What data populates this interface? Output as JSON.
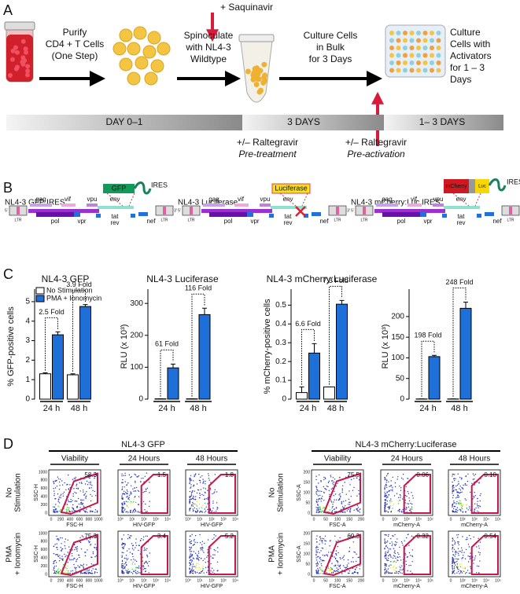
{
  "panel_a": {
    "label": "A",
    "saquinavir": "+ Saquinavir",
    "steps": [
      [
        "Purify",
        "CD4 + T Cells",
        "(One Step)"
      ],
      [
        "Spinoculate",
        "with NL4-3",
        "Wildtype"
      ],
      [
        "Culture Cells",
        "in Bulk",
        "for 3 Days"
      ],
      [
        "Culture",
        "Cells with",
        "Activators",
        "for 1 – 3",
        "Days"
      ]
    ],
    "timeline": [
      "DAY  0–1",
      "3 DAYS",
      "1– 3 DAYS"
    ],
    "treatments": [
      [
        "+/– Raltegravir",
        "Pre-treatment"
      ],
      [
        "+/– Raltegravir",
        "Pre-activation"
      ]
    ]
  },
  "panel_b": {
    "label": "B",
    "ends": [
      "5'",
      "3'"
    ],
    "ltr": "LTR",
    "genes": [
      "gag",
      "vif",
      "vpu",
      "env",
      "pol",
      "vpr",
      "tat",
      "rev",
      "nef"
    ],
    "constructs": [
      {
        "name": "NL4-3 GFP IRES",
        "insert": [
          "GFP",
          "IRES"
        ]
      },
      {
        "name": "NL4-3 Luciferase",
        "insert": [
          "Luciferase"
        ]
      },
      {
        "name": "NL4-3 mCherry:Luc IRES",
        "insert": [
          "mCherry",
          "Luc",
          "IRES"
        ]
      }
    ]
  },
  "panel_c": {
    "label": "C"
  },
  "chart_data": [
    {
      "type": "bar",
      "title": "NL4-3 GFP",
      "ylabel": "% GFP-positive cells",
      "categories": [
        "24 h",
        "48 h"
      ],
      "legend": "upper left",
      "series": [
        {
          "name": "No Stimulation",
          "color": "#ffffff",
          "values": [
            1.3,
            1.25
          ],
          "errors": [
            0.05,
            0.05
          ]
        },
        {
          "name": "PMA + Ionomycin",
          "color": "#1f6fd8",
          "values": [
            3.3,
            4.75
          ],
          "errors": [
            0.15,
            0.1
          ]
        }
      ],
      "ylim": [
        0,
        5.4
      ],
      "yticks": [
        0,
        1,
        2,
        3,
        4,
        5
      ],
      "annotations": [
        "2.5 Fold",
        "3.9 Fold"
      ]
    },
    {
      "type": "bar",
      "title": "NL4-3 Luciferase",
      "ylabel": "RLU (x  10³)",
      "categories": [
        "24 h",
        "48 h"
      ],
      "series": [
        {
          "name": "No Stimulation",
          "color": "#ffffff",
          "values": [
            1,
            1
          ],
          "errors": [
            0,
            0
          ]
        },
        {
          "name": "PMA + Ionomycin",
          "color": "#1f6fd8",
          "values": [
            98,
            265
          ],
          "errors": [
            12,
            20
          ]
        }
      ],
      "ylim": [
        0,
        330
      ],
      "yticks": [
        0,
        100,
        200,
        300
      ],
      "annotations": [
        "61 Fold",
        "116 Fold"
      ]
    },
    {
      "type": "bar",
      "title": "NL4-3 mCherry:Luciferase",
      "ylabel": "% mCherry-positive cells",
      "categories": [
        "24 h",
        "48 h"
      ],
      "series": [
        {
          "name": "No Stimulation",
          "color": "#ffffff",
          "values": [
            0.035,
            0.065
          ],
          "errors": [
            0.03,
            0
          ]
        },
        {
          "name": "PMA + Ionomycin",
          "color": "#1f6fd8",
          "values": [
            0.245,
            0.505
          ],
          "errors": [
            0.05,
            0.02
          ]
        }
      ],
      "ylim": [
        0,
        0.56
      ],
      "yticks": [
        0,
        0.1,
        0.2,
        0.3,
        0.4,
        0.5
      ],
      "annotations": [
        "6.6 Fold",
        "7.3 Fold"
      ]
    },
    {
      "type": "bar",
      "ylabel": "RLU (x  10³)",
      "categories": [
        "24 h",
        "48 h"
      ],
      "series": [
        {
          "name": "No Stimulation",
          "color": "#ffffff",
          "values": [
            0.5,
            0.5
          ],
          "errors": [
            0,
            0
          ]
        },
        {
          "name": "PMA + Ionomycin",
          "color": "#1f6fd8",
          "values": [
            103,
            220
          ],
          "errors": [
            3,
            15
          ]
        }
      ],
      "ylim": [
        0,
        255
      ],
      "yticks": [
        0,
        50,
        100,
        150,
        200
      ],
      "annotations": [
        "198 Fold",
        "248 Fold"
      ]
    }
  ],
  "panel_d": {
    "label": "D",
    "rows": [
      [
        "No",
        "Stimulation"
      ],
      [
        "PMA",
        "+ Ionomycin"
      ]
    ],
    "groups": [
      {
        "title": "NL4-3 GFP",
        "columns": [
          "Viability",
          "24 Hours",
          "48 Hours"
        ],
        "ylabel": "SSC-H",
        "xlabels": [
          "FSC-H",
          "HIV-GFP",
          "HIV-GFP"
        ],
        "yticks": [
          "0",
          "200",
          "400",
          "600",
          "800",
          "1000"
        ],
        "lin_ticks": [
          "0",
          "200",
          "400",
          "600",
          "800",
          "1000"
        ],
        "log_ticks": [
          "10⁰",
          "10¹",
          "10²",
          "10³",
          "10⁴"
        ],
        "gates": [
          [
            "58.3",
            "1.5",
            "1.8"
          ],
          [
            "75.3",
            "3.4",
            "5.2"
          ]
        ]
      },
      {
        "title": "NL4-3 mCherry:Luciferase",
        "columns": [
          "Viability",
          "24 Hours",
          "48 Hours"
        ],
        "ylabel": "SSC-A",
        "xlabels": [
          "FSC-A",
          "mCherry-A",
          "mCherry-A"
        ],
        "yticks": [
          "0",
          "50",
          "100",
          "150",
          "200"
        ],
        "lin_ticks": [
          "0",
          "50",
          "100",
          "150",
          "200"
        ],
        "log_ticks": [
          "0",
          "10²",
          "10³",
          "10⁴",
          "10⁵"
        ],
        "gates": [
          [
            "75.5",
            "0.06",
            "0.10"
          ],
          [
            "69.3",
            "0.32",
            "0.54"
          ]
        ]
      }
    ]
  }
}
